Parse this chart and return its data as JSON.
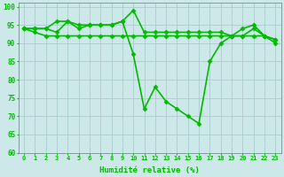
{
  "xlabel": "Humidité relative (%)",
  "xlim": [
    -0.5,
    23.5
  ],
  "ylim": [
    60,
    101
  ],
  "yticks": [
    60,
    65,
    70,
    75,
    80,
    85,
    90,
    95,
    100
  ],
  "xticks": [
    0,
    1,
    2,
    3,
    4,
    5,
    6,
    7,
    8,
    9,
    10,
    11,
    12,
    13,
    14,
    15,
    16,
    17,
    18,
    19,
    20,
    21,
    22,
    23
  ],
  "background_color": "#cce8e8",
  "grid_color": "#aacccc",
  "line_color": "#00bb00",
  "series": [
    [
      94,
      94,
      94,
      96,
      96,
      95,
      95,
      95,
      95,
      96,
      99,
      93,
      93,
      93,
      93,
      93,
      93,
      93,
      93,
      92,
      94,
      95,
      92,
      91
    ],
    [
      94,
      94,
      94,
      93,
      96,
      94,
      95,
      95,
      95,
      96,
      87,
      72,
      78,
      74,
      72,
      70,
      68,
      85,
      90,
      92,
      92,
      94,
      92,
      90
    ],
    [
      94,
      93,
      92,
      92,
      92,
      92,
      92,
      92,
      92,
      92,
      92,
      92,
      92,
      92,
      92,
      92,
      92,
      92,
      92,
      92,
      92,
      92,
      92,
      91
    ]
  ],
  "marker": "D",
  "markersize": 2.5,
  "linewidth": 1.2
}
